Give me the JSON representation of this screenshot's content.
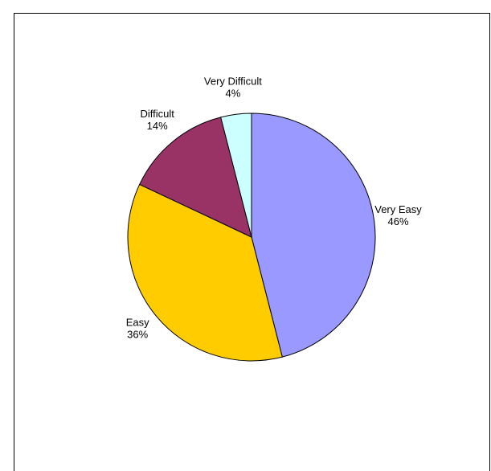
{
  "chart_data": {
    "type": "pie",
    "title": "",
    "slices": [
      {
        "label": "Very Easy",
        "percent_label": "46%",
        "value": 46,
        "color": "#9999ff"
      },
      {
        "label": "Easy",
        "percent_label": "36%",
        "value": 36,
        "color": "#ffcc00"
      },
      {
        "label": "Difficult",
        "percent_label": "14%",
        "value": 14,
        "color": "#993366"
      },
      {
        "label": "Very Difficult",
        "percent_label": "4%",
        "value": 4,
        "color": "#ccffff"
      }
    ],
    "start_angle_deg": 0,
    "direction": "clockwise",
    "legend": "none",
    "slice_border_color": "#000000"
  }
}
